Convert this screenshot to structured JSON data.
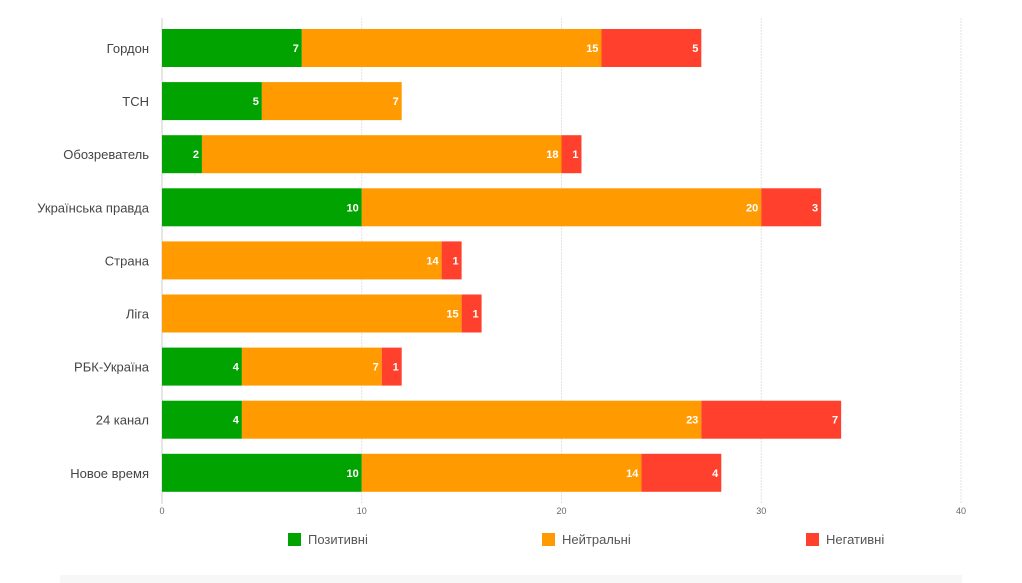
{
  "chart_data": {
    "type": "bar",
    "orientation": "horizontal",
    "stacked": true,
    "title": "",
    "xlabel": "",
    "ylabel": "",
    "xlim": [
      0,
      40
    ],
    "x_ticks": [
      0,
      10,
      20,
      30,
      40
    ],
    "grid": true,
    "legend_position": "bottom",
    "categories": [
      "Гордон",
      "ТСН",
      "Обозреватель",
      "Українська правда",
      "Страна",
      "Ліга",
      "РБК-Україна",
      "24 канал",
      "Новое время"
    ],
    "series": [
      {
        "name": "Позитивні",
        "color": "#00a300",
        "values": [
          7,
          5,
          2,
          10,
          0,
          0,
          4,
          4,
          10
        ]
      },
      {
        "name": "Нейтральні",
        "color": "#ff9a00",
        "values": [
          15,
          7,
          18,
          20,
          14,
          15,
          7,
          23,
          14
        ]
      },
      {
        "name": "Негативні",
        "color": "#ff402c",
        "values": [
          5,
          0,
          1,
          3,
          1,
          1,
          1,
          7,
          4
        ]
      }
    ]
  }
}
